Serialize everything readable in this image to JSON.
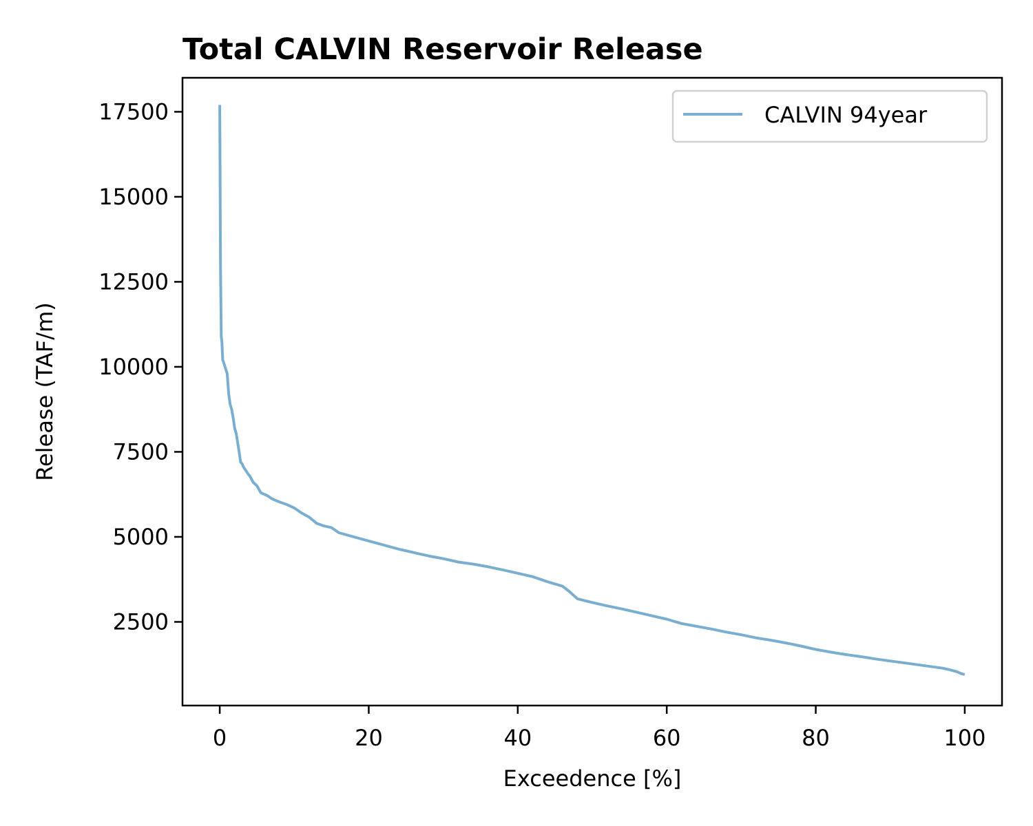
{
  "chart_data": {
    "type": "line",
    "title": "Total CALVIN Reservoir Release",
    "xlabel": "Exceedence [%]",
    "ylabel": "Release (TAF/m)",
    "xlim": [
      -5,
      105
    ],
    "ylim": [
      40,
      18500
    ],
    "xticks": [
      0,
      20,
      40,
      60,
      80,
      100
    ],
    "yticks": [
      2500,
      5000,
      7500,
      10000,
      12500,
      15000,
      17500
    ],
    "grid": false,
    "legend_position": "top-right",
    "line_color": "#7aaed0",
    "series": [
      {
        "name": "CALVIN 94year",
        "x": [
          0,
          0.1,
          0.15,
          0.2,
          0.3,
          0.4,
          0.5,
          0.7,
          1.0,
          1.2,
          1.4,
          1.6,
          1.8,
          2.0,
          2.2,
          2.5,
          2.8,
          3.0,
          3.2,
          3.5,
          3.8,
          4.0,
          4.5,
          5.0,
          5.5,
          6.0,
          6.5,
          7.0,
          8.0,
          9.0,
          10.0,
          11.0,
          12.0,
          13.0,
          14.0,
          15.0,
          16.0,
          17.0,
          18.0,
          20.0,
          22.0,
          24.0,
          26.0,
          28.0,
          30.0,
          32.0,
          34.0,
          36.0,
          38.0,
          40.0,
          42.0,
          44.0,
          46.0,
          47.0,
          48.0,
          50.0,
          52.0,
          54.0,
          56.0,
          58.0,
          60.0,
          62.0,
          64.0,
          66.0,
          68.0,
          70.0,
          72.0,
          74.0,
          76.0,
          78.0,
          80.0,
          82.0,
          84.0,
          86.0,
          88.0,
          90.0,
          92.0,
          94.0,
          96.0,
          97.0,
          98.0,
          99.0,
          99.5,
          100.0
        ],
        "y": [
          17700,
          13000,
          12000,
          10900,
          10700,
          10200,
          10150,
          10000,
          9800,
          9200,
          8900,
          8750,
          8500,
          8200,
          8050,
          7650,
          7200,
          7150,
          7050,
          6950,
          6850,
          6800,
          6600,
          6500,
          6300,
          6250,
          6200,
          6120,
          6030,
          5950,
          5850,
          5700,
          5580,
          5400,
          5320,
          5270,
          5120,
          5060,
          5000,
          4880,
          4760,
          4640,
          4540,
          4440,
          4360,
          4260,
          4200,
          4120,
          4030,
          3930,
          3830,
          3680,
          3550,
          3380,
          3180,
          3070,
          2970,
          2880,
          2780,
          2680,
          2580,
          2450,
          2370,
          2290,
          2200,
          2120,
          2030,
          1960,
          1880,
          1790,
          1690,
          1610,
          1540,
          1480,
          1410,
          1350,
          1290,
          1230,
          1170,
          1140,
          1090,
          1030,
          980,
          950
        ]
      }
    ]
  }
}
